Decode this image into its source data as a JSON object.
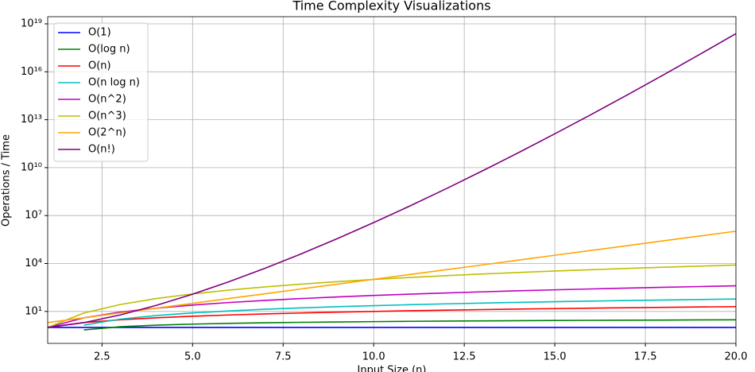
{
  "chart_data": {
    "type": "line",
    "title": "Time Complexity Visualizations",
    "x_label": "Input Size (n)",
    "y_label": "Operations / Time",
    "x": [
      1,
      2,
      3,
      4,
      5,
      6,
      7,
      8,
      9,
      10,
      11,
      12,
      13,
      14,
      15,
      16,
      17,
      18,
      19,
      20
    ],
    "xlim": [
      1,
      20
    ],
    "xticks": [
      2.5,
      {
        "value": 5,
        "label": "5.0"
      },
      7.5,
      {
        "value": 10,
        "label": "10.0"
      },
      12.5,
      {
        "value": 15,
        "label": "15.0"
      },
      17.5,
      {
        "value": 20,
        "label": "20.0"
      }
    ],
    "y_scale": "log",
    "ylim": [
      0.1,
      2.8e+19
    ],
    "yticks": [
      {
        "value": 10,
        "label": "10¹"
      },
      {
        "value": 10000,
        "label": "10⁴"
      },
      {
        "value": 10000000,
        "label": "10⁷"
      },
      {
        "value": 10000000000,
        "label": "10¹⁰"
      },
      {
        "value": 10000000000000,
        "label": "10¹³"
      },
      {
        "value": 10000000000000000,
        "label": "10¹⁶"
      },
      {
        "value": 10000000000000000000,
        "label": "10¹⁹"
      }
    ],
    "grid": true,
    "legend": "upper left",
    "series": [
      {
        "name": "O(1)",
        "color": "#0000ff",
        "values": [
          1,
          1,
          1,
          1,
          1,
          1,
          1,
          1,
          1,
          1,
          1,
          1,
          1,
          1,
          1,
          1,
          1,
          1,
          1,
          1
        ]
      },
      {
        "name": "O(log n)",
        "color": "#008000",
        "values": [
          null,
          0.693,
          1.099,
          1.386,
          1.609,
          1.792,
          1.946,
          2.079,
          2.197,
          2.303,
          2.398,
          2.485,
          2.565,
          2.639,
          2.708,
          2.773,
          2.833,
          2.89,
          2.944,
          2.996
        ]
      },
      {
        "name": "O(n)",
        "color": "#ff0000",
        "values": [
          1,
          2,
          3,
          4,
          5,
          6,
          7,
          8,
          9,
          10,
          11,
          12,
          13,
          14,
          15,
          16,
          17,
          18,
          19,
          20
        ]
      },
      {
        "name": "O(n log n)",
        "color": "#00bfbf",
        "values": [
          null,
          1.386,
          3.296,
          5.545,
          8.047,
          10.751,
          13.621,
          16.636,
          19.775,
          23.026,
          26.377,
          29.819,
          33.344,
          36.946,
          40.621,
          44.361,
          48.164,
          52.026,
          55.944,
          59.915
        ]
      },
      {
        "name": "O(n^2)",
        "color": "#bf00bf",
        "values": [
          1,
          4,
          9,
          16,
          25,
          36,
          49,
          64,
          81,
          100,
          121,
          144,
          169,
          196,
          225,
          256,
          289,
          324,
          361,
          400
        ]
      },
      {
        "name": "O(n^3)",
        "color": "#bfbf00",
        "values": [
          1,
          8,
          27,
          64,
          125,
          216,
          343,
          512,
          729,
          1000,
          1331,
          1728,
          2197,
          2744,
          3375,
          4096,
          4913,
          5832,
          6859,
          8000
        ]
      },
      {
        "name": "O(2^n)",
        "color": "#ffa500",
        "values": [
          2,
          4,
          8,
          16,
          32,
          64,
          128,
          256,
          512,
          1024,
          2048,
          4096,
          8192,
          16384,
          32768,
          65536,
          131072,
          262144,
          524288,
          1048576
        ]
      },
      {
        "name": "O(n!)",
        "color": "#800080",
        "values": [
          1,
          2,
          6,
          24,
          120,
          720,
          5040,
          40320,
          362880,
          3628800,
          39916800,
          479001600,
          6227020800,
          87178291200,
          1307674368000,
          20922789888000,
          355687428096000,
          6402373705728000,
          121645100408832000,
          2432902008176640000
        ]
      }
    ]
  }
}
